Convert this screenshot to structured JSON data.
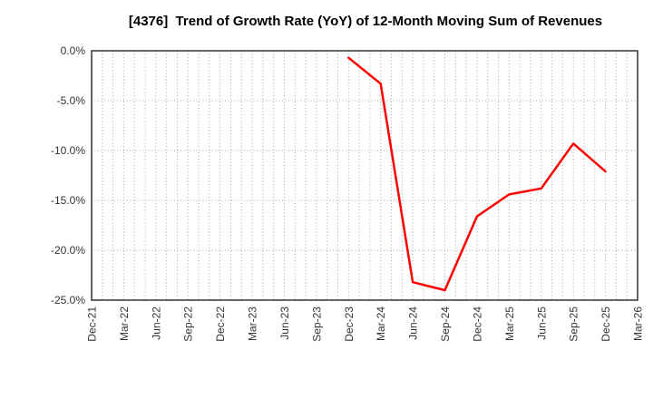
{
  "chart_data": {
    "type": "line",
    "title": "[4376]  Trend of Growth Rate (YoY) of 12-Month Moving Sum of Revenues",
    "x_ticks": [
      "Dec-21",
      "Mar-22",
      "Jun-22",
      "Sep-22",
      "Dec-22",
      "Mar-23",
      "Jun-23",
      "Sep-23",
      "Dec-23",
      "Mar-24",
      "Jun-24",
      "Sep-24",
      "Dec-24",
      "Mar-25",
      "Jun-25",
      "Sep-25",
      "Dec-25",
      "Mar-26"
    ],
    "y_ticks": [
      0.0,
      -5.0,
      -10.0,
      -15.0,
      -20.0,
      -25.0
    ],
    "y_tick_suffix": "%",
    "ylim": [
      -25,
      0
    ],
    "xlabel": "",
    "ylabel": "",
    "legend": "none",
    "grid": "dotted gray; horizontal every 5%, vertical monthly minor lines",
    "series": [
      {
        "name": "Growth Rate (YoY) of 12-Month Moving Sum of Revenues",
        "color": "#ff0000",
        "points": [
          {
            "x": "Dec-23",
            "y": -0.7
          },
          {
            "x": "Mar-24",
            "y": -3.3
          },
          {
            "x": "Jun-24",
            "y": -23.2
          },
          {
            "x": "Sep-24",
            "y": -24.0
          },
          {
            "x": "Dec-24",
            "y": -16.6
          },
          {
            "x": "Mar-25",
            "y": -14.4
          },
          {
            "x": "Jun-25",
            "y": -13.8
          },
          {
            "x": "Sep-25",
            "y": -9.3
          },
          {
            "x": "Dec-25",
            "y": -12.1
          }
        ]
      }
    ],
    "colors": {
      "line": "#ff0000",
      "grid": "#a8a8a8",
      "frame": "#333333",
      "tick_text": "#333333",
      "title_text": "#1c1c1c",
      "background": "#ffffff"
    }
  }
}
